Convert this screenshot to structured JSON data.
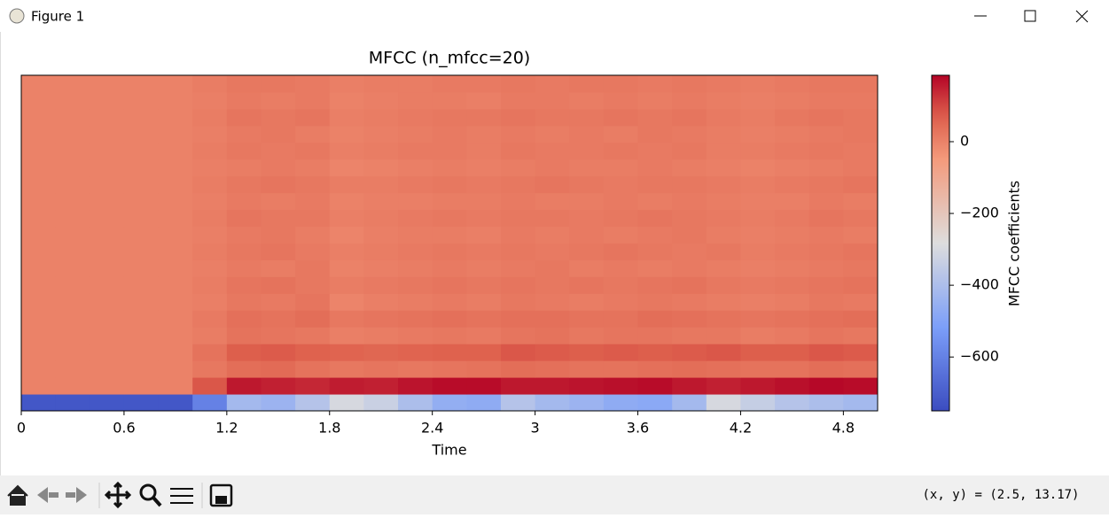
{
  "window": {
    "title": "Figure 1",
    "status": "(x, y) = (2.5, 13.17)"
  },
  "chart_data": {
    "type": "heatmap",
    "title": "MFCC (n_mfcc=20)",
    "xlabel": "Time",
    "colorbar_label": "MFCC coefficients",
    "colormap": "coolwarm",
    "x": [
      0,
      0.2,
      0.4,
      0.6,
      0.8,
      1.0,
      1.2,
      1.4,
      1.6,
      1.8,
      2.0,
      2.2,
      2.4,
      2.6,
      2.8,
      3.0,
      3.2,
      3.4,
      3.6,
      3.8,
      4.0,
      4.2,
      4.4,
      4.6,
      4.8
    ],
    "xlim": [
      0,
      5.0
    ],
    "xticks": [
      0,
      0.6,
      1.2,
      1.8,
      2.4,
      3,
      3.6,
      4.2,
      4.8
    ],
    "clim": [
      -750,
      185
    ],
    "cticks": [
      0,
      {
        "value": -200,
        "label": "−200"
      },
      {
        "value": -400,
        "label": "−400"
      },
      {
        "value": -600,
        "label": "−600"
      }
    ],
    "values": [
      [
        -720,
        -720,
        -720,
        -720,
        -720,
        -600,
        -420,
        -440,
        -380,
        -300,
        -330,
        -400,
        -460,
        -470,
        -380,
        -420,
        -440,
        -470,
        -480,
        -420,
        -300,
        -340,
        -380,
        -400,
        -420
      ],
      [
        0,
        0,
        0,
        0,
        0,
        80,
        160,
        150,
        140,
        155,
        150,
        165,
        175,
        175,
        160,
        160,
        165,
        170,
        175,
        160,
        150,
        160,
        170,
        180,
        175
      ],
      [
        0,
        0,
        0,
        0,
        0,
        20,
        40,
        45,
        30,
        20,
        25,
        20,
        25,
        30,
        40,
        35,
        30,
        30,
        35,
        40,
        35,
        30,
        30,
        40,
        35
      ],
      [
        0,
        0,
        0,
        0,
        0,
        30,
        70,
        75,
        65,
        60,
        55,
        60,
        65,
        65,
        80,
        75,
        70,
        75,
        70,
        75,
        80,
        70,
        70,
        80,
        75
      ],
      [
        0,
        0,
        0,
        0,
        0,
        10,
        30,
        25,
        20,
        5,
        10,
        15,
        20,
        15,
        25,
        30,
        20,
        25,
        25,
        20,
        20,
        10,
        15,
        25,
        20
      ],
      [
        0,
        0,
        0,
        0,
        0,
        15,
        35,
        30,
        40,
        20,
        25,
        30,
        35,
        30,
        35,
        35,
        30,
        30,
        40,
        35,
        30,
        25,
        30,
        35,
        40
      ],
      [
        0,
        0,
        0,
        0,
        0,
        5,
        20,
        15,
        25,
        -5,
        5,
        10,
        15,
        10,
        20,
        15,
        10,
        15,
        20,
        15,
        10,
        5,
        10,
        20,
        15
      ],
      [
        0,
        0,
        0,
        0,
        0,
        10,
        25,
        30,
        20,
        10,
        15,
        20,
        25,
        20,
        25,
        20,
        25,
        20,
        25,
        30,
        20,
        15,
        20,
        25,
        30
      ],
      [
        0,
        0,
        0,
        0,
        0,
        5,
        15,
        10,
        20,
        0,
        5,
        10,
        15,
        10,
        15,
        20,
        10,
        15,
        10,
        15,
        10,
        5,
        10,
        15,
        20
      ],
      [
        0,
        0,
        0,
        0,
        0,
        10,
        20,
        25,
        15,
        5,
        10,
        15,
        20,
        15,
        20,
        15,
        20,
        25,
        20,
        15,
        20,
        10,
        15,
        20,
        25
      ],
      [
        0,
        0,
        0,
        0,
        0,
        5,
        15,
        20,
        10,
        -5,
        5,
        10,
        10,
        5,
        15,
        10,
        15,
        10,
        15,
        20,
        10,
        5,
        10,
        15,
        10
      ],
      [
        0,
        0,
        0,
        0,
        0,
        10,
        25,
        20,
        20,
        5,
        10,
        15,
        20,
        15,
        20,
        20,
        15,
        20,
        25,
        20,
        15,
        10,
        15,
        25,
        20
      ],
      [
        0,
        0,
        0,
        0,
        0,
        5,
        15,
        10,
        15,
        0,
        5,
        5,
        10,
        10,
        15,
        10,
        10,
        15,
        10,
        15,
        10,
        5,
        5,
        15,
        10
      ],
      [
        0,
        0,
        0,
        0,
        0,
        10,
        20,
        25,
        20,
        10,
        10,
        15,
        20,
        15,
        20,
        25,
        20,
        15,
        20,
        20,
        15,
        10,
        15,
        20,
        25
      ],
      [
        0,
        0,
        0,
        0,
        0,
        5,
        10,
        15,
        10,
        -5,
        0,
        5,
        10,
        5,
        10,
        15,
        10,
        10,
        15,
        10,
        5,
        0,
        5,
        10,
        15
      ],
      [
        0,
        0,
        0,
        0,
        0,
        10,
        20,
        15,
        20,
        5,
        10,
        15,
        15,
        10,
        20,
        15,
        15,
        20,
        15,
        20,
        10,
        10,
        15,
        20,
        15
      ],
      [
        0,
        0,
        0,
        0,
        0,
        5,
        15,
        20,
        10,
        0,
        5,
        10,
        15,
        10,
        15,
        10,
        15,
        10,
        20,
        15,
        10,
        5,
        10,
        15,
        20
      ],
      [
        0,
        0,
        0,
        0,
        0,
        10,
        25,
        20,
        25,
        5,
        10,
        15,
        20,
        20,
        25,
        20,
        20,
        25,
        20,
        25,
        15,
        10,
        20,
        25,
        20
      ],
      [
        0,
        0,
        0,
        0,
        0,
        5,
        15,
        10,
        15,
        0,
        5,
        10,
        10,
        5,
        15,
        15,
        10,
        15,
        10,
        15,
        10,
        5,
        10,
        15,
        15
      ],
      [
        0,
        0,
        0,
        0,
        0,
        10,
        20,
        20,
        15,
        5,
        10,
        10,
        15,
        15,
        20,
        15,
        20,
        20,
        15,
        20,
        15,
        10,
        15,
        20,
        20
      ]
    ]
  }
}
